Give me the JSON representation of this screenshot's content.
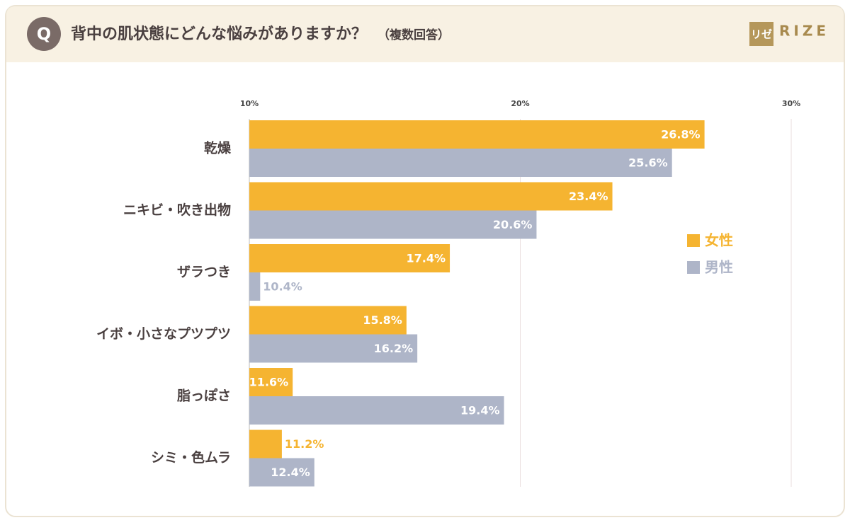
{
  "chart_data": {
    "type": "hbar",
    "badge": "Q",
    "title": "背中の肌状態にどんな悩みがありますか？",
    "subtitle": "（複数回答）",
    "logo_mark": "リゼ",
    "logo_text": "RIZE",
    "categories": [
      "乾燥",
      "ニキビ・吹き出物",
      "ザラつき",
      "イボ・小さなプツプツ",
      "脂っぽさ",
      "シミ・色ムラ"
    ],
    "series": [
      {
        "name": "女性",
        "color": "#f5b431",
        "values": [
          26.8,
          23.4,
          17.4,
          15.8,
          11.6,
          11.2
        ],
        "value_labels": [
          "26.8%",
          "23.4%",
          "17.4%",
          "15.8%",
          "11.6%",
          "11.2%"
        ]
      },
      {
        "name": "男性",
        "color": "#aeb5c8",
        "values": [
          25.6,
          20.6,
          10.4,
          16.2,
          19.4,
          12.4
        ],
        "value_labels": [
          "25.6%",
          "20.6%",
          "10.4%",
          "16.2%",
          "19.4%",
          "12.4%"
        ]
      }
    ],
    "xlim": [
      10,
      30
    ],
    "xticks": [
      {
        "value": 10,
        "label": "10%"
      },
      {
        "value": 20,
        "label": "20%"
      },
      {
        "value": 30,
        "label": "30%"
      }
    ],
    "grid": true,
    "legend": "right"
  }
}
